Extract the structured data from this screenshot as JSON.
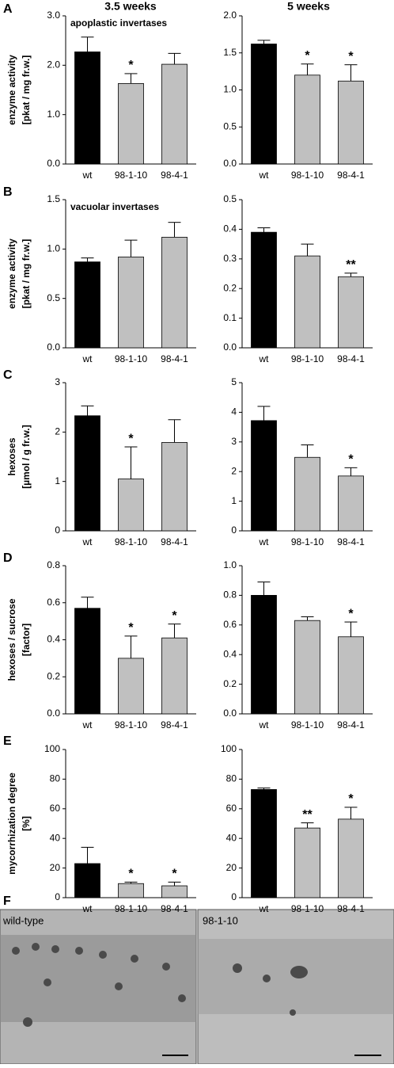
{
  "column_headers": [
    "3.5 weeks",
    "5 weeks"
  ],
  "panel_labels": [
    "A",
    "B",
    "C",
    "D",
    "E",
    "F"
  ],
  "images": [
    {
      "label": "wild-type"
    },
    {
      "label": "98-1-10"
    }
  ],
  "chart_data": [
    {
      "type": "bar",
      "annotation": "apoplastic invertases",
      "ylabel": [
        "enzyme activity",
        "[pkat / mg fr.w.]"
      ],
      "categories": [
        "wt",
        "98-1-10",
        "98-4-1"
      ],
      "values": [
        2.27,
        1.63,
        2.02
      ],
      "errors": [
        0.3,
        0.2,
        0.22
      ],
      "significance": [
        null,
        "*",
        null
      ],
      "colors": [
        "#000000",
        "#c0c0c0",
        "#c0c0c0"
      ],
      "ylim": [
        0,
        3
      ],
      "yticks": [
        {
          "value": 0,
          "label": "0.0"
        },
        {
          "value": 1,
          "label": "1.0"
        },
        {
          "value": 2,
          "label": "2.0"
        },
        {
          "value": 3,
          "label": "3.0"
        }
      ]
    },
    {
      "type": "bar",
      "categories": [
        "wt",
        "98-1-10",
        "98-4-1"
      ],
      "values": [
        1.62,
        1.2,
        1.12
      ],
      "errors": [
        0.05,
        0.15,
        0.22
      ],
      "significance": [
        null,
        "*",
        "*"
      ],
      "colors": [
        "#000000",
        "#c0c0c0",
        "#c0c0c0"
      ],
      "ylim": [
        0,
        2
      ],
      "yticks": [
        {
          "value": 0,
          "label": "0.0"
        },
        0.5,
        {
          "value": 1,
          "label": "1.0"
        },
        1.5,
        {
          "value": 2,
          "label": "2.0"
        }
      ]
    },
    {
      "type": "bar",
      "annotation": "vacuolar invertases",
      "ylabel": [
        "enzyme activity",
        "[pkat / mg fr.w.]"
      ],
      "categories": [
        "wt",
        "98-1-10",
        "98-4-1"
      ],
      "values": [
        0.87,
        0.92,
        1.12
      ],
      "errors": [
        0.04,
        0.17,
        0.15
      ],
      "significance": [
        null,
        null,
        null
      ],
      "colors": [
        "#000000",
        "#c0c0c0",
        "#c0c0c0"
      ],
      "ylim": [
        0,
        1.5
      ],
      "yticks": [
        {
          "value": 0,
          "label": "0.0"
        },
        0.5,
        {
          "value": 1,
          "label": "1.0"
        },
        1.5
      ]
    },
    {
      "type": "bar",
      "categories": [
        "wt",
        "98-1-10",
        "98-4-1"
      ],
      "values": [
        0.39,
        0.31,
        0.24
      ],
      "errors": [
        0.015,
        0.04,
        0.012
      ],
      "significance": [
        null,
        null,
        "**"
      ],
      "colors": [
        "#000000",
        "#c0c0c0",
        "#c0c0c0"
      ],
      "ylim": [
        0,
        0.5
      ],
      "yticks": [
        {
          "value": 0,
          "label": "0.0"
        },
        0.1,
        0.2,
        0.3,
        0.4,
        0.5
      ]
    },
    {
      "type": "bar",
      "ylabel": [
        "hexoses",
        "[µmol / g fr.w.]"
      ],
      "categories": [
        "wt",
        "98-1-10",
        "98-4-1"
      ],
      "values": [
        2.33,
        1.05,
        1.79
      ],
      "errors": [
        0.2,
        0.65,
        0.46
      ],
      "significance": [
        null,
        "*",
        null
      ],
      "colors": [
        "#000000",
        "#c0c0c0",
        "#c0c0c0"
      ],
      "ylim": [
        0,
        3
      ],
      "yticks": [
        0,
        1,
        2,
        3
      ]
    },
    {
      "type": "bar",
      "categories": [
        "wt",
        "98-1-10",
        "98-4-1"
      ],
      "values": [
        3.72,
        2.48,
        1.85
      ],
      "errors": [
        0.48,
        0.42,
        0.28
      ],
      "significance": [
        null,
        null,
        "*"
      ],
      "colors": [
        "#000000",
        "#c0c0c0",
        "#c0c0c0"
      ],
      "ylim": [
        0,
        5
      ],
      "yticks": [
        0,
        1,
        2,
        3,
        4,
        5
      ]
    },
    {
      "type": "bar",
      "ylabel": [
        "hexoses / sucrose",
        "[factor]"
      ],
      "categories": [
        "wt",
        "98-1-10",
        "98-4-1"
      ],
      "values": [
        0.57,
        0.3,
        0.41
      ],
      "errors": [
        0.06,
        0.12,
        0.075
      ],
      "significance": [
        null,
        "*",
        "*"
      ],
      "colors": [
        "#000000",
        "#c0c0c0",
        "#c0c0c0"
      ],
      "ylim": [
        0,
        0.8
      ],
      "yticks": [
        {
          "value": 0,
          "label": "0.0"
        },
        0.2,
        0.4,
        0.6,
        0.8
      ]
    },
    {
      "type": "bar",
      "categories": [
        "wt",
        "98-1-10",
        "98-4-1"
      ],
      "values": [
        0.8,
        0.63,
        0.52
      ],
      "errors": [
        0.09,
        0.025,
        0.1
      ],
      "significance": [
        null,
        null,
        "*"
      ],
      "colors": [
        "#000000",
        "#c0c0c0",
        "#c0c0c0"
      ],
      "ylim": [
        0,
        1
      ],
      "yticks": [
        {
          "value": 0,
          "label": "0.0"
        },
        0.2,
        0.4,
        0.6,
        0.8,
        {
          "value": 1,
          "label": "1.0"
        }
      ]
    },
    {
      "type": "bar",
      "ylabel": [
        "mycorrhization degree",
        "[%]"
      ],
      "categories": [
        "wt",
        "98-1-10",
        "98-4-1"
      ],
      "values": [
        23,
        9.5,
        8
      ],
      "errors": [
        11,
        1,
        2.5
      ],
      "significance": [
        null,
        "*",
        "*"
      ],
      "colors": [
        "#000000",
        "#c0c0c0",
        "#c0c0c0"
      ],
      "ylim": [
        0,
        100
      ],
      "yticks": [
        0,
        20,
        40,
        60,
        80,
        100
      ]
    },
    {
      "type": "bar",
      "categories": [
        "wt",
        "98-1-10",
        "98-4-1"
      ],
      "values": [
        73,
        47,
        53
      ],
      "errors": [
        1,
        3.5,
        8
      ],
      "significance": [
        null,
        "**",
        "*"
      ],
      "colors": [
        "#000000",
        "#c0c0c0",
        "#c0c0c0"
      ],
      "ylim": [
        0,
        100
      ],
      "yticks": [
        0,
        20,
        40,
        60,
        80,
        100
      ]
    }
  ]
}
